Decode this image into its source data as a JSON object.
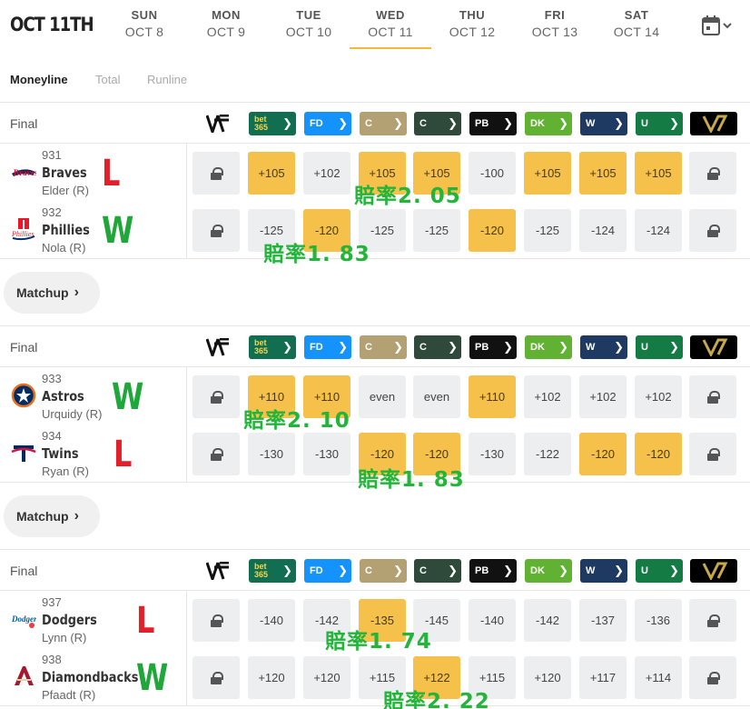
{
  "header": {
    "current_date": "OCT 11TH",
    "days": [
      {
        "name": "SUN",
        "date": "OCT 8"
      },
      {
        "name": "MON",
        "date": "OCT 9"
      },
      {
        "name": "TUE",
        "date": "OCT 10"
      },
      {
        "name": "WED",
        "date": "OCT 11",
        "active": true
      },
      {
        "name": "THU",
        "date": "OCT 12"
      },
      {
        "name": "FRI",
        "date": "OCT 13"
      },
      {
        "name": "SAT",
        "date": "OCT 14"
      }
    ],
    "calendar_icon": "calendar-icon"
  },
  "tabs": [
    {
      "label": "Moneyline",
      "active": true
    },
    {
      "label": "Total"
    },
    {
      "label": "Runline"
    }
  ],
  "colors": {
    "highlight": "#f5c14b",
    "cell": "#eceef0",
    "win": "#1fa73a",
    "loss": "#e3202a",
    "note": "#22b53a"
  },
  "sportsbooks": [
    {
      "name": "vsin",
      "mark": "V",
      "color": "#ffffff"
    },
    {
      "name": "bet365",
      "mark": "bet 365",
      "color": "#126e51"
    },
    {
      "name": "fanduel",
      "mark": "FD",
      "color": "#1493ff"
    },
    {
      "name": "caesars",
      "mark": "C",
      "color": "#b3a174"
    },
    {
      "name": "circa",
      "mark": "C",
      "color": "#2f4a3a"
    },
    {
      "name": "pointsbet",
      "mark": "PB",
      "color": "#111111"
    },
    {
      "name": "draftkings",
      "mark": "DK",
      "color": "#61b232"
    },
    {
      "name": "wynnbet",
      "mark": "W",
      "color": "#1e3a63"
    },
    {
      "name": "unibet",
      "mark": "U",
      "color": "#147b45"
    },
    {
      "name": "betmgm",
      "mark": "V",
      "color": "#000000"
    }
  ],
  "games": [
    {
      "status": "Final",
      "teams": [
        {
          "rot": "931",
          "name": "Braves",
          "pitcher": "Elder (R)",
          "result": "L",
          "logo": "braves-logo",
          "odds": [
            "lock",
            "+105",
            "+102",
            "+105",
            "+105",
            "-100",
            "+105",
            "+105",
            "+105",
            "lock"
          ],
          "hl": [
            false,
            true,
            false,
            true,
            true,
            false,
            true,
            true,
            true,
            false
          ]
        },
        {
          "rot": "932",
          "name": "Phillies",
          "pitcher": "Nola (R)",
          "result": "W",
          "logo": "phillies-logo",
          "odds": [
            "lock",
            "-125",
            "-120",
            "-125",
            "-125",
            "-120",
            "-125",
            "-124",
            "-124",
            "lock"
          ],
          "hl": [
            false,
            false,
            true,
            false,
            false,
            true,
            false,
            false,
            false,
            false
          ]
        }
      ],
      "notes": [
        "賠率2. 05",
        "賠率1. 83"
      ],
      "matchup_label": "Matchup"
    },
    {
      "status": "Final",
      "teams": [
        {
          "rot": "933",
          "name": "Astros",
          "pitcher": "Urquidy (R)",
          "result": "W",
          "logo": "astros-logo",
          "odds": [
            "lock",
            "+110",
            "+110",
            "even",
            "even",
            "+110",
            "+102",
            "+102",
            "+102",
            "lock"
          ],
          "hl": [
            false,
            true,
            true,
            false,
            false,
            true,
            false,
            false,
            false,
            false
          ]
        },
        {
          "rot": "934",
          "name": "Twins",
          "pitcher": "Ryan (R)",
          "result": "L",
          "logo": "twins-logo",
          "odds": [
            "lock",
            "-130",
            "-130",
            "-120",
            "-120",
            "-130",
            "-122",
            "-120",
            "-120",
            "lock"
          ],
          "hl": [
            false,
            false,
            false,
            true,
            true,
            false,
            false,
            true,
            true,
            false
          ]
        }
      ],
      "notes": [
        "賠率2. 10",
        "賠率1. 83"
      ],
      "matchup_label": "Matchup"
    },
    {
      "status": "Final",
      "teams": [
        {
          "rot": "937",
          "name": "Dodgers",
          "pitcher": "Lynn (R)",
          "result": "L",
          "logo": "dodgers-logo",
          "odds": [
            "lock",
            "-140",
            "-142",
            "-135",
            "-145",
            "-140",
            "-142",
            "-137",
            "-136",
            "lock"
          ],
          "hl": [
            false,
            false,
            false,
            true,
            false,
            false,
            false,
            false,
            false,
            false
          ]
        },
        {
          "rot": "938",
          "name": "Diamondbacks",
          "pitcher": "Pfaadt (R)",
          "result": "W",
          "logo": "diamondbacks-logo",
          "odds": [
            "lock",
            "+120",
            "+120",
            "+115",
            "+122",
            "+115",
            "+120",
            "+117",
            "+114",
            "lock"
          ],
          "hl": [
            false,
            false,
            false,
            false,
            true,
            false,
            false,
            false,
            false,
            false
          ]
        }
      ],
      "notes": [
        "賠率1. 74",
        "賠率2. 22"
      ]
    }
  ]
}
